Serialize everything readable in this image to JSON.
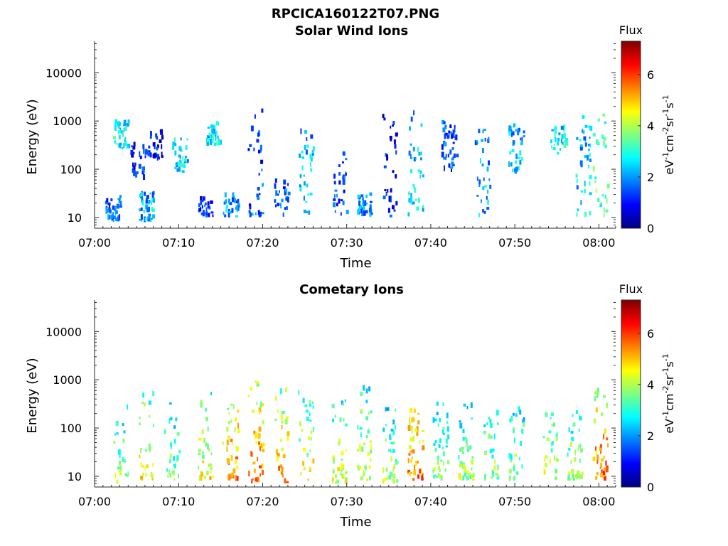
{
  "figure_title": "RPCICA160122T07.PNG",
  "chart_data": [
    {
      "type": "heatmap",
      "title": "Solar Wind Ions",
      "xlabel": "Time",
      "ylabel": "Energy (eV)",
      "xticks": [
        "07:00",
        "07:10",
        "07:20",
        "07:30",
        "07:40",
        "07:50",
        "08:00"
      ],
      "xlim": [
        "07:00",
        "08:02"
      ],
      "yscale": "log",
      "ylim": [
        6,
        45000
      ],
      "yticks": [
        "10",
        "100",
        "1000",
        "10000"
      ],
      "colorbar": {
        "title": "Flux",
        "label": "eV-1cm-2sr-1s-1",
        "range": [
          0,
          7.3
        ],
        "ticks": [
          "0",
          "2",
          "4",
          "6"
        ]
      },
      "bursts": [
        {
          "t": "07:02",
          "e_low": 8,
          "e_high": 25,
          "flux": 1.5
        },
        {
          "t": "07:03",
          "e_low": 250,
          "e_high": 900,
          "flux": 2.8
        },
        {
          "t": "07:05",
          "e_low": 60,
          "e_high": 300,
          "flux": 1.2
        },
        {
          "t": "07:06",
          "e_low": 8,
          "e_high": 30,
          "flux": 2.2
        },
        {
          "t": "07:07",
          "e_low": 150,
          "e_high": 600,
          "flux": 1.0
        },
        {
          "t": "07:10",
          "e_low": 80,
          "e_high": 400,
          "flux": 2.5
        },
        {
          "t": "07:13",
          "e_low": 10,
          "e_high": 25,
          "flux": 1.3
        },
        {
          "t": "07:14",
          "e_low": 300,
          "e_high": 900,
          "flux": 2.6
        },
        {
          "t": "07:16",
          "e_low": 10,
          "e_high": 30,
          "flux": 2.0
        },
        {
          "t": "07:19",
          "e_low": 10,
          "e_high": 2000,
          "flux": 1.5
        },
        {
          "t": "07:22",
          "e_low": 10,
          "e_high": 60,
          "flux": 1.8
        },
        {
          "t": "07:25",
          "e_low": 10,
          "e_high": 600,
          "flux": 2.4
        },
        {
          "t": "07:29",
          "e_low": 10,
          "e_high": 200,
          "flux": 1.4
        },
        {
          "t": "07:32",
          "e_low": 10,
          "e_high": 30,
          "flux": 1.9
        },
        {
          "t": "07:35",
          "e_low": 10,
          "e_high": 1200,
          "flux": 1.2
        },
        {
          "t": "07:38",
          "e_low": 10,
          "e_high": 1500,
          "flux": 2.5
        },
        {
          "t": "07:42",
          "e_low": 80,
          "e_high": 900,
          "flux": 1.6
        },
        {
          "t": "07:46",
          "e_low": 10,
          "e_high": 900,
          "flux": 2.2
        },
        {
          "t": "07:50",
          "e_low": 80,
          "e_high": 900,
          "flux": 2.3
        },
        {
          "t": "07:55",
          "e_low": 200,
          "e_high": 700,
          "flux": 2.7
        },
        {
          "t": "07:58",
          "e_low": 10,
          "e_high": 1200,
          "flux": 2.5
        },
        {
          "t": "08:00",
          "e_low": 10,
          "e_high": 1500,
          "flux": 3.4
        }
      ]
    },
    {
      "type": "heatmap",
      "title": "Cometary Ions",
      "xlabel": "Time",
      "ylabel": "Energy (eV)",
      "xticks": [
        "07:00",
        "07:10",
        "07:20",
        "07:30",
        "07:40",
        "07:50",
        "08:00"
      ],
      "xlim": [
        "07:00",
        "08:02"
      ],
      "yscale": "log",
      "ylim": [
        6,
        45000
      ],
      "yticks": [
        "10",
        "100",
        "1000",
        "10000"
      ],
      "colorbar": {
        "title": "Flux",
        "label": "eV-1cm-2sr-1s-1",
        "range": [
          0,
          7.3
        ],
        "ticks": [
          "0",
          "2",
          "4",
          "6"
        ]
      },
      "bursts": [
        {
          "t": "07:03",
          "e_low": 6,
          "e_high": 300,
          "flux": 4.0
        },
        {
          "t": "07:06",
          "e_low": 8,
          "e_high": 500,
          "flux": 4.8
        },
        {
          "t": "07:09",
          "e_low": 8,
          "e_high": 400,
          "flux": 3.8
        },
        {
          "t": "07:13",
          "e_low": 8,
          "e_high": 500,
          "flux": 4.6
        },
        {
          "t": "07:16",
          "e_low": 8,
          "e_high": 300,
          "flux": 5.5
        },
        {
          "t": "07:19",
          "e_low": 7,
          "e_high": 1500,
          "flux": 5.7
        },
        {
          "t": "07:22",
          "e_low": 7,
          "e_high": 600,
          "flux": 5.4
        },
        {
          "t": "07:25",
          "e_low": 8,
          "e_high": 600,
          "flux": 4.6
        },
        {
          "t": "07:29",
          "e_low": 7,
          "e_high": 400,
          "flux": 4.3
        },
        {
          "t": "07:32",
          "e_low": 8,
          "e_high": 600,
          "flux": 4.4
        },
        {
          "t": "07:35",
          "e_low": 7,
          "e_high": 300,
          "flux": 3.9
        },
        {
          "t": "07:38",
          "e_low": 8,
          "e_high": 300,
          "flux": 5.6
        },
        {
          "t": "07:41",
          "e_low": 8,
          "e_high": 300,
          "flux": 3.8
        },
        {
          "t": "07:44",
          "e_low": 8,
          "e_high": 300,
          "flux": 3.9
        },
        {
          "t": "07:47",
          "e_low": 8,
          "e_high": 200,
          "flux": 3.7
        },
        {
          "t": "07:50",
          "e_low": 8,
          "e_high": 300,
          "flux": 3.8
        },
        {
          "t": "07:54",
          "e_low": 8,
          "e_high": 200,
          "flux": 4.2
        },
        {
          "t": "07:57",
          "e_low": 8,
          "e_high": 200,
          "flux": 4.0
        },
        {
          "t": "08:00",
          "e_low": 8,
          "e_high": 800,
          "flux": 5.8
        }
      ]
    }
  ]
}
